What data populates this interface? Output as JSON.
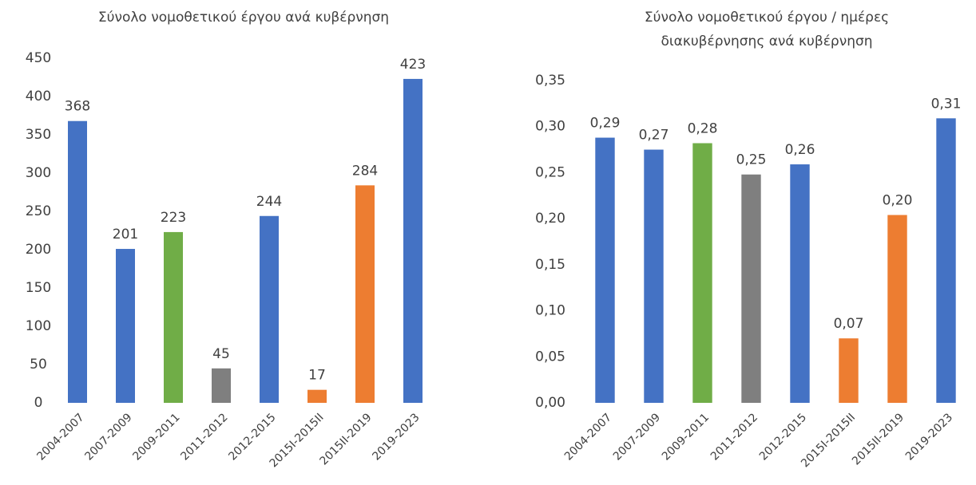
{
  "chart_data": [
    {
      "type": "bar",
      "title": "Σύνολο νομοθετικού έργου ανά κυβέρνηση",
      "categories": [
        "2004-2007",
        "2007-2009",
        "2009-2011",
        "2011-2012",
        "2012-2015",
        "2015I-2015II",
        "2015II-2019",
        "2019-2023"
      ],
      "values": [
        368,
        201,
        223,
        45,
        244,
        17,
        284,
        423
      ],
      "colors": [
        "#4472c4",
        "#4472c4",
        "#70ad47",
        "#7f7f7f",
        "#4472c4",
        "#ed7d31",
        "#ed7d31",
        "#4472c4"
      ],
      "ylim": [
        0,
        450
      ],
      "yticks": [
        0,
        50,
        100,
        150,
        200,
        250,
        300,
        350,
        400,
        450
      ],
      "grid": false
    },
    {
      "type": "bar",
      "title": [
        "Σύνολο νομοθετικού έργου / ημέρες",
        "διακυβέρνησης ανά κυβέρνηση"
      ],
      "categories": [
        "2004-2007",
        "2007-2009",
        "2009-2011",
        "2011-2012",
        "2012-2015",
        "2015I-2015II",
        "2015II-2019",
        "2019-2023"
      ],
      "values": [
        0.288,
        0.275,
        0.282,
        0.248,
        0.259,
        0.07,
        0.204,
        0.309
      ],
      "value_labels": [
        "0,29",
        "0,27",
        "0,28",
        "0,25",
        "0,26",
        "0,07",
        "0,20",
        "0,31"
      ],
      "colors": [
        "#4472c4",
        "#4472c4",
        "#70ad47",
        "#7f7f7f",
        "#4472c4",
        "#ed7d31",
        "#ed7d31",
        "#4472c4"
      ],
      "ylim": [
        0,
        0.35
      ],
      "yticks": [
        {
          "value": 0,
          "label": "0,00"
        },
        {
          "value": 0.05,
          "label": "0,05"
        },
        {
          "value": 0.1,
          "label": "0,10"
        },
        {
          "value": 0.15,
          "label": "0,15"
        },
        {
          "value": 0.2,
          "label": "0,20"
        },
        {
          "value": 0.25,
          "label": "0,25"
        },
        {
          "value": 0.3,
          "label": "0,30"
        },
        {
          "value": 0.35,
          "label": "0,35"
        }
      ],
      "grid": false
    }
  ]
}
